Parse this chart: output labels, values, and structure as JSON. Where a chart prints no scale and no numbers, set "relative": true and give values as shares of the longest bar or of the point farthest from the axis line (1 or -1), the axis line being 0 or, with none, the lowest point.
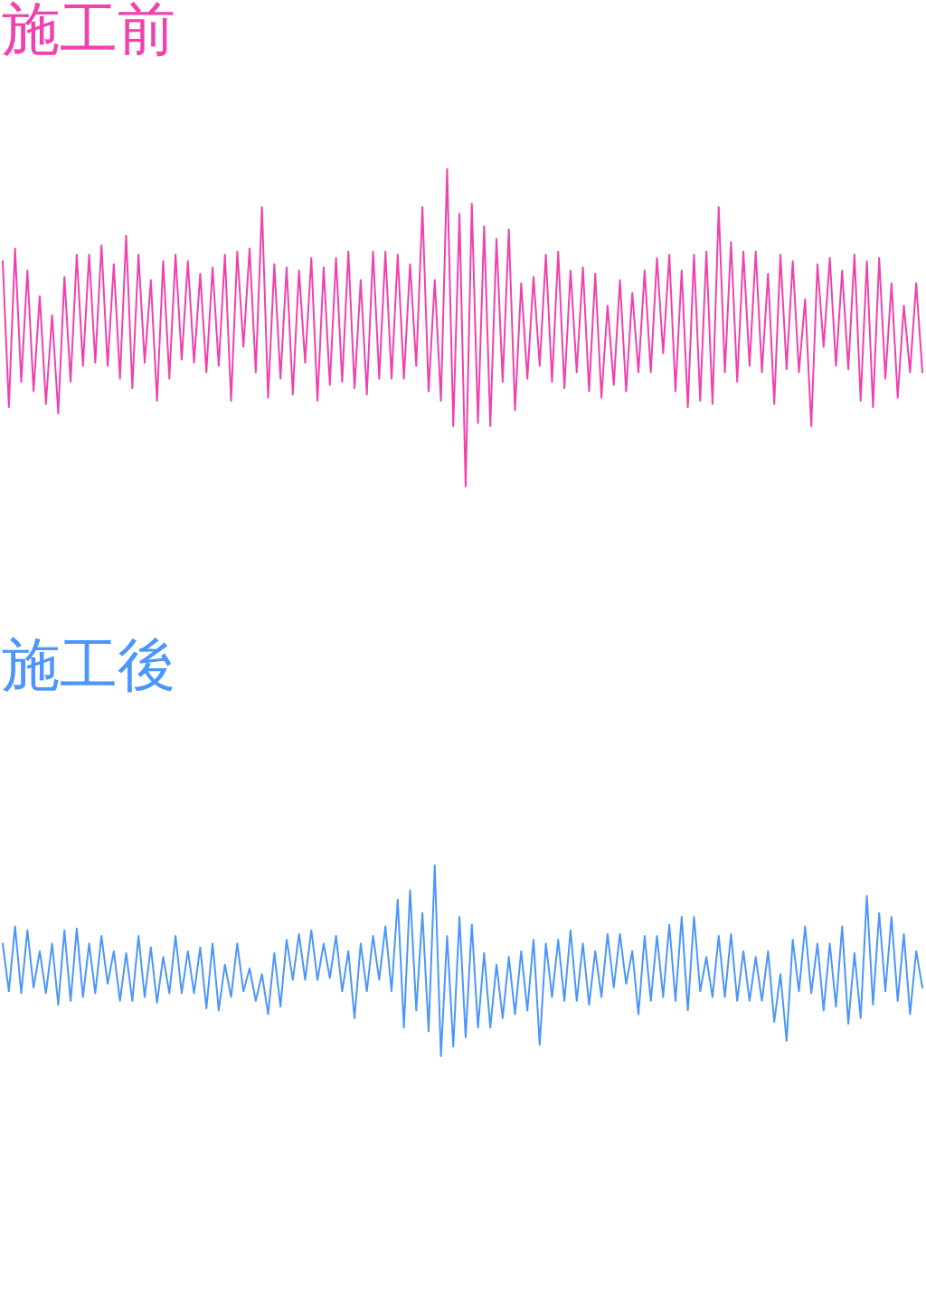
{
  "chart_data": [
    {
      "type": "line",
      "title": "施工前",
      "relative": true,
      "categories": [
        null,
        null,
        null,
        null,
        null,
        null,
        null,
        null,
        null,
        null,
        null,
        null,
        null,
        null,
        null,
        null,
        null,
        null,
        null,
        null,
        null,
        null,
        null,
        null,
        null,
        null,
        null,
        null,
        null,
        null,
        null,
        null,
        null,
        null,
        null,
        null,
        null,
        null,
        null,
        null,
        null,
        null,
        null,
        null,
        null,
        null,
        null,
        null,
        null,
        null,
        null,
        null,
        null,
        null,
        null,
        null,
        null,
        null,
        null,
        null,
        null,
        null,
        null,
        null,
        null,
        null,
        null,
        null,
        null,
        null,
        null,
        null,
        null,
        null,
        null,
        null,
        null,
        null,
        null,
        null,
        null,
        null,
        null,
        null,
        null,
        null,
        null,
        null,
        null,
        null,
        null,
        null,
        null,
        null,
        null,
        null,
        null,
        null,
        null,
        null,
        null,
        null,
        null,
        null,
        null,
        null,
        null,
        null,
        null,
        null,
        null,
        null,
        null,
        null,
        null,
        null,
        null,
        null,
        null,
        null,
        null,
        null,
        null,
        null,
        null,
        null,
        null,
        null,
        null,
        null,
        null,
        null,
        null,
        null,
        null,
        null,
        null,
        null,
        null,
        null,
        null,
        null,
        null,
        null,
        null,
        null,
        null,
        null,
        null,
        null
      ],
      "series": [
        {
          "color": "#f041ac",
          "values": [
            0.71,
            0.25,
            0.75,
            0.33,
            0.68,
            0.3,
            0.6,
            0.26,
            0.54,
            0.23,
            0.66,
            0.33,
            0.73,
            0.38,
            0.73,
            0.39,
            0.76,
            0.38,
            0.7,
            0.34,
            0.79,
            0.31,
            0.73,
            0.39,
            0.65,
            0.27,
            0.71,
            0.34,
            0.73,
            0.4,
            0.71,
            0.39,
            0.67,
            0.36,
            0.69,
            0.38,
            0.73,
            0.27,
            0.74,
            0.44,
            0.75,
            0.36,
            0.88,
            0.28,
            0.7,
            0.34,
            0.69,
            0.29,
            0.68,
            0.39,
            0.72,
            0.27,
            0.69,
            0.32,
            0.72,
            0.33,
            0.74,
            0.31,
            0.65,
            0.29,
            0.74,
            0.34,
            0.74,
            0.34,
            0.73,
            0.34,
            0.7,
            0.38,
            0.88,
            0.3,
            0.65,
            0.27,
            1.0,
            0.19,
            0.86,
            0.0,
            0.89,
            0.2,
            0.82,
            0.19,
            0.78,
            0.33,
            0.81,
            0.24,
            0.64,
            0.34,
            0.66,
            0.38,
            0.73,
            0.33,
            0.74,
            0.31,
            0.68,
            0.36,
            0.69,
            0.3,
            0.67,
            0.28,
            0.57,
            0.32,
            0.65,
            0.3,
            0.61,
            0.36,
            0.68,
            0.36,
            0.72,
            0.42,
            0.73,
            0.3,
            0.68,
            0.25,
            0.73,
            0.27,
            0.74,
            0.26,
            0.88,
            0.36,
            0.77,
            0.33,
            0.74,
            0.38,
            0.74,
            0.36,
            0.67,
            0.26,
            0.73,
            0.37,
            0.71,
            0.36,
            0.59,
            0.19,
            0.7,
            0.44,
            0.72,
            0.38,
            0.68,
            0.37,
            0.73,
            0.27,
            0.71,
            0.25,
            0.72,
            0.34,
            0.64,
            0.28,
            0.57,
            0.36,
            0.64,
            0.36
          ]
        }
      ]
    },
    {
      "type": "line",
      "title": "施工後",
      "relative": true,
      "categories": [
        null,
        null,
        null,
        null,
        null,
        null,
        null,
        null,
        null,
        null,
        null,
        null,
        null,
        null,
        null,
        null,
        null,
        null,
        null,
        null,
        null,
        null,
        null,
        null,
        null,
        null,
        null,
        null,
        null,
        null,
        null,
        null,
        null,
        null,
        null,
        null,
        null,
        null,
        null,
        null,
        null,
        null,
        null,
        null,
        null,
        null,
        null,
        null,
        null,
        null,
        null,
        null,
        null,
        null,
        null,
        null,
        null,
        null,
        null,
        null,
        null,
        null,
        null,
        null,
        null,
        null,
        null,
        null,
        null,
        null,
        null,
        null,
        null,
        null,
        null,
        null,
        null,
        null,
        null,
        null,
        null,
        null,
        null,
        null,
        null,
        null,
        null,
        null,
        null,
        null,
        null,
        null,
        null,
        null,
        null,
        null,
        null,
        null,
        null,
        null,
        null,
        null,
        null,
        null,
        null,
        null,
        null,
        null,
        null,
        null,
        null,
        null,
        null,
        null,
        null,
        null,
        null,
        null,
        null,
        null,
        null,
        null,
        null,
        null,
        null,
        null,
        null,
        null,
        null,
        null,
        null,
        null,
        null,
        null,
        null,
        null,
        null,
        null,
        null,
        null,
        null,
        null,
        null,
        null,
        null,
        null,
        null,
        null,
        null,
        null
      ],
      "series": [
        {
          "color": "#4b96fc",
          "values": [
            0.59,
            0.34,
            0.68,
            0.33,
            0.66,
            0.36,
            0.55,
            0.33,
            0.59,
            0.27,
            0.66,
            0.29,
            0.67,
            0.31,
            0.59,
            0.33,
            0.63,
            0.38,
            0.55,
            0.29,
            0.54,
            0.29,
            0.63,
            0.31,
            0.57,
            0.28,
            0.52,
            0.33,
            0.63,
            0.33,
            0.55,
            0.33,
            0.57,
            0.25,
            0.59,
            0.24,
            0.48,
            0.31,
            0.59,
            0.34,
            0.46,
            0.29,
            0.43,
            0.22,
            0.54,
            0.26,
            0.61,
            0.4,
            0.64,
            0.4,
            0.66,
            0.4,
            0.59,
            0.41,
            0.63,
            0.34,
            0.55,
            0.2,
            0.59,
            0.34,
            0.63,
            0.4,
            0.68,
            0.34,
            0.82,
            0.15,
            0.87,
            0.24,
            0.75,
            0.13,
            1.0,
            0.0,
            0.63,
            0.05,
            0.73,
            0.1,
            0.69,
            0.15,
            0.54,
            0.15,
            0.48,
            0.2,
            0.52,
            0.22,
            0.55,
            0.24,
            0.61,
            0.06,
            0.59,
            0.31,
            0.61,
            0.29,
            0.66,
            0.29,
            0.59,
            0.27,
            0.55,
            0.31,
            0.64,
            0.36,
            0.64,
            0.38,
            0.55,
            0.22,
            0.63,
            0.29,
            0.63,
            0.31,
            0.69,
            0.29,
            0.73,
            0.24,
            0.73,
            0.34,
            0.52,
            0.31,
            0.63,
            0.31,
            0.64,
            0.29,
            0.55,
            0.29,
            0.52,
            0.29,
            0.55,
            0.18,
            0.43,
            0.08,
            0.61,
            0.34,
            0.68,
            0.33,
            0.59,
            0.24,
            0.59,
            0.26,
            0.68,
            0.17,
            0.54,
            0.2,
            0.84,
            0.27,
            0.75,
            0.34,
            0.73,
            0.29,
            0.64,
            0.22,
            0.55,
            0.36
          ]
        }
      ]
    }
  ]
}
